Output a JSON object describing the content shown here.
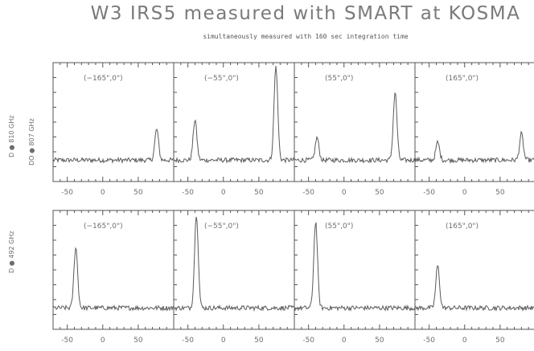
{
  "title": "W3 IRS5 measured with SMART at KOSMA",
  "subtitle": "simultaneously measured with 160 sec integration time",
  "chart_data": {
    "type": "line",
    "xticks": [
      "-50",
      "0",
      "50"
    ],
    "xrange": [
      -70,
      100
    ],
    "colors": {
      "line": "#5a5a5a",
      "axis": "#555555",
      "text": "#6e6e6e"
    },
    "rows": [
      {
        "ylabel_top": "DO ● 807 GHz",
        "ylabel_bottom": "D ● 810 GHz",
        "panels": [
          {
            "label": "(−165\",0\")",
            "peaks": [
              {
                "x": 76,
                "y": 0.33
              }
            ]
          },
          {
            "label": "(−55\",0\")",
            "peaks": [
              {
                "x": -40,
                "y": 0.43
              },
              {
                "x": 74,
                "y": 1.0
              }
            ]
          },
          {
            "label": "(55\",0\")",
            "peaks": [
              {
                "x": -38,
                "y": 0.24
              },
              {
                "x": 72,
                "y": 0.72
              }
            ]
          },
          {
            "label": "(165\",0\")",
            "peaks": [
              {
                "x": -38,
                "y": 0.19
              },
              {
                "x": 80,
                "y": 0.28
              }
            ]
          }
        ]
      },
      {
        "ylabel_top": "",
        "ylabel_bottom": "D ● 492 GHz",
        "panels": [
          {
            "label": "(−165\",0\")",
            "peaks": [
              {
                "x": -38,
                "y": 0.65
              }
            ]
          },
          {
            "label": "(−55\",0\")",
            "peaks": [
              {
                "x": -38,
                "y": 1.0
              }
            ]
          },
          {
            "label": "(55\",0\")",
            "peaks": [
              {
                "x": -40,
                "y": 0.92
              }
            ]
          },
          {
            "label": "(165\",0\")",
            "peaks": [
              {
                "x": -38,
                "y": 0.45
              }
            ]
          }
        ]
      }
    ]
  }
}
